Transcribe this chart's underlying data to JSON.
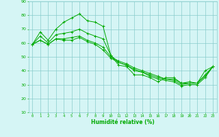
{
  "xlabel": "Humidité relative (%)",
  "background_color": "#d5f5f5",
  "grid_color": "#88cccc",
  "line_color": "#00aa00",
  "hours": [
    0,
    1,
    2,
    3,
    4,
    5,
    6,
    7,
    8,
    9,
    10,
    11,
    12,
    13,
    14,
    15,
    16,
    17,
    18,
    19,
    20,
    21,
    22,
    23
  ],
  "line_max": [
    59,
    68,
    62,
    70,
    75,
    78,
    81,
    76,
    75,
    72,
    51,
    44,
    43,
    37,
    37,
    35,
    32,
    35,
    35,
    31,
    31,
    31,
    40,
    43
  ],
  "line_high": [
    59,
    65,
    60,
    66,
    67,
    68,
    70,
    67,
    65,
    63,
    51,
    46,
    44,
    40,
    39,
    37,
    35,
    34,
    34,
    31,
    32,
    31,
    37,
    43
  ],
  "line_low": [
    59,
    62,
    59,
    63,
    63,
    64,
    65,
    62,
    60,
    57,
    50,
    47,
    45,
    42,
    40,
    38,
    36,
    34,
    33,
    30,
    31,
    31,
    36,
    43
  ],
  "line_min": [
    59,
    62,
    59,
    63,
    62,
    62,
    64,
    61,
    59,
    55,
    49,
    46,
    44,
    41,
    39,
    36,
    34,
    33,
    32,
    29,
    30,
    30,
    35,
    43
  ],
  "ylim": [
    10,
    90
  ],
  "yticks": [
    10,
    20,
    30,
    40,
    50,
    60,
    70,
    80,
    90
  ],
  "xlim": [
    0,
    23
  ]
}
